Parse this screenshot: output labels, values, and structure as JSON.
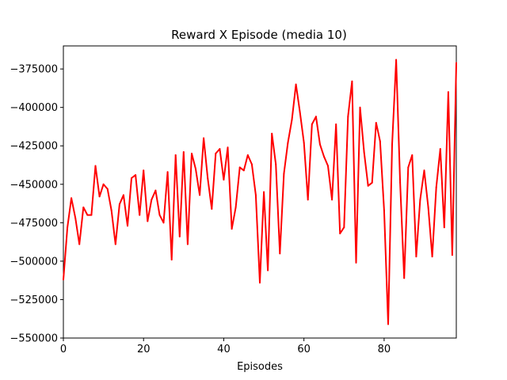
{
  "chart_data": {
    "type": "line",
    "title": "Reward X Episode (media 10)",
    "xlabel": "Episodes",
    "ylabel": "",
    "xlim": [
      0,
      98
    ],
    "ylim": [
      -550000,
      -360000
    ],
    "xticks": [
      0,
      20,
      40,
      60,
      80
    ],
    "yticks": [
      -375000,
      -400000,
      -425000,
      -450000,
      -475000,
      -500000,
      -525000,
      -550000
    ],
    "xtick_labels": [
      "0",
      "20",
      "40",
      "60",
      "80"
    ],
    "ytick_labels": [
      "−375000",
      "−400000",
      "−425000",
      "−450000",
      "−475000",
      "−500000",
      "−525000",
      "−550000"
    ],
    "grid": false,
    "series": [
      {
        "color": "#ff0000",
        "x": [
          0,
          1,
          2,
          3,
          4,
          5,
          6,
          7,
          8,
          9,
          10,
          11,
          12,
          13,
          14,
          15,
          16,
          17,
          18,
          19,
          20,
          21,
          22,
          23,
          24,
          25,
          26,
          27,
          28,
          29,
          30,
          31,
          32,
          33,
          34,
          35,
          36,
          37,
          38,
          39,
          40,
          41,
          42,
          43,
          44,
          45,
          46,
          47,
          48,
          49,
          50,
          51,
          52,
          53,
          54,
          55,
          56,
          57,
          58,
          59,
          60,
          61,
          62,
          63,
          64,
          65,
          66,
          67,
          68,
          69,
          70,
          71,
          72,
          73,
          74,
          75,
          76,
          77,
          78,
          79,
          80,
          81,
          82,
          83,
          84,
          85,
          86,
          87,
          88,
          89,
          90,
          91,
          92,
          93,
          94,
          95,
          96,
          97,
          98
        ],
        "values": [
          -512000,
          -478000,
          -459000,
          -472000,
          -489000,
          -465000,
          -470000,
          -470000,
          -438000,
          -458000,
          -450000,
          -453000,
          -467000,
          -489000,
          -463000,
          -457000,
          -477000,
          -446000,
          -444000,
          -470000,
          -441000,
          -474000,
          -460000,
          -454000,
          -470000,
          -475000,
          -442000,
          -499000,
          -431000,
          -484000,
          -429000,
          -489000,
          -430000,
          -440000,
          -457000,
          -420000,
          -446000,
          -466000,
          -430000,
          -427000,
          -447000,
          -426000,
          -479000,
          -465000,
          -439000,
          -441000,
          -431000,
          -437000,
          -457000,
          -514000,
          -455000,
          -506000,
          -417000,
          -437000,
          -495000,
          -443000,
          -423000,
          -408000,
          -385000,
          -403000,
          -423000,
          -460000,
          -411000,
          -406000,
          -424000,
          -432000,
          -438000,
          -460000,
          -411000,
          -482000,
          -478000,
          -406000,
          -383000,
          -501000,
          -400000,
          -429000,
          -451000,
          -449000,
          -410000,
          -422000,
          -467000,
          -541000,
          -424000,
          -369000,
          -449000,
          -511000,
          -439000,
          -431000,
          -497000,
          -460000,
          -441000,
          -465000,
          -497000,
          -452000,
          -427000,
          -478000,
          -390000,
          -496000,
          -371000
        ]
      }
    ]
  }
}
